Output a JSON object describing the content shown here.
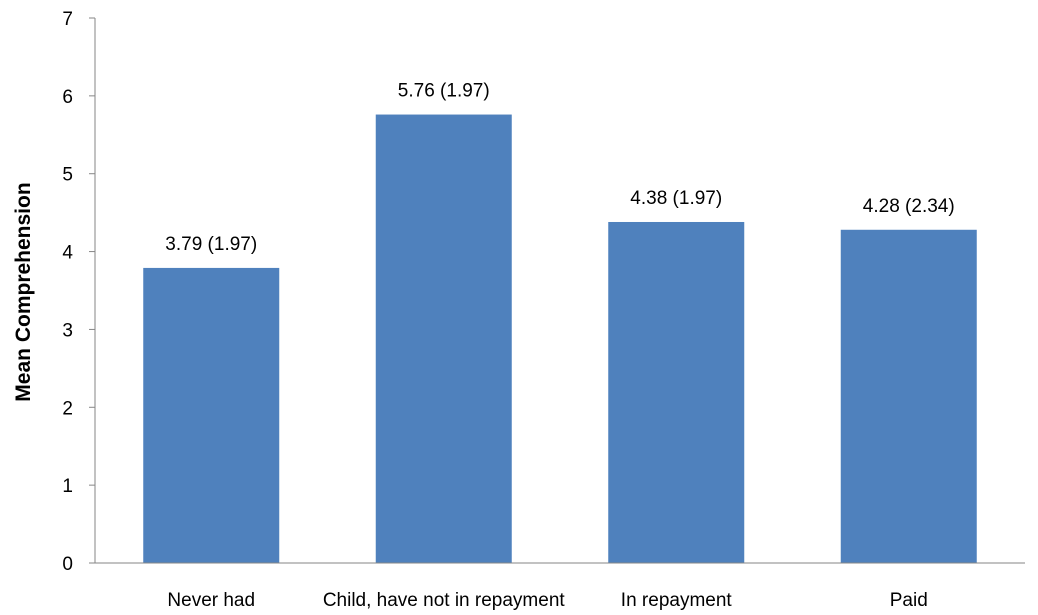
{
  "chart_data": {
    "type": "bar",
    "title": "",
    "xlabel": "",
    "ylabel": "Mean Comprehension",
    "categories": [
      "Never had",
      "Child, have not in repayment",
      "In repayment",
      "Paid"
    ],
    "values": [
      3.79,
      5.76,
      4.38,
      4.28
    ],
    "data_labels": [
      "3.79 (1.97)",
      "5.76 (1.97)",
      "4.38 (1.97)",
      "4.28 (2.34)"
    ],
    "ylim": [
      0,
      7
    ],
    "yticks": [
      "0",
      "1",
      "2",
      "3",
      "4",
      "5",
      "6",
      "7"
    ],
    "grid": false,
    "legend": "none",
    "bar_color": "#4F81BD",
    "axis_color": "#868686"
  }
}
